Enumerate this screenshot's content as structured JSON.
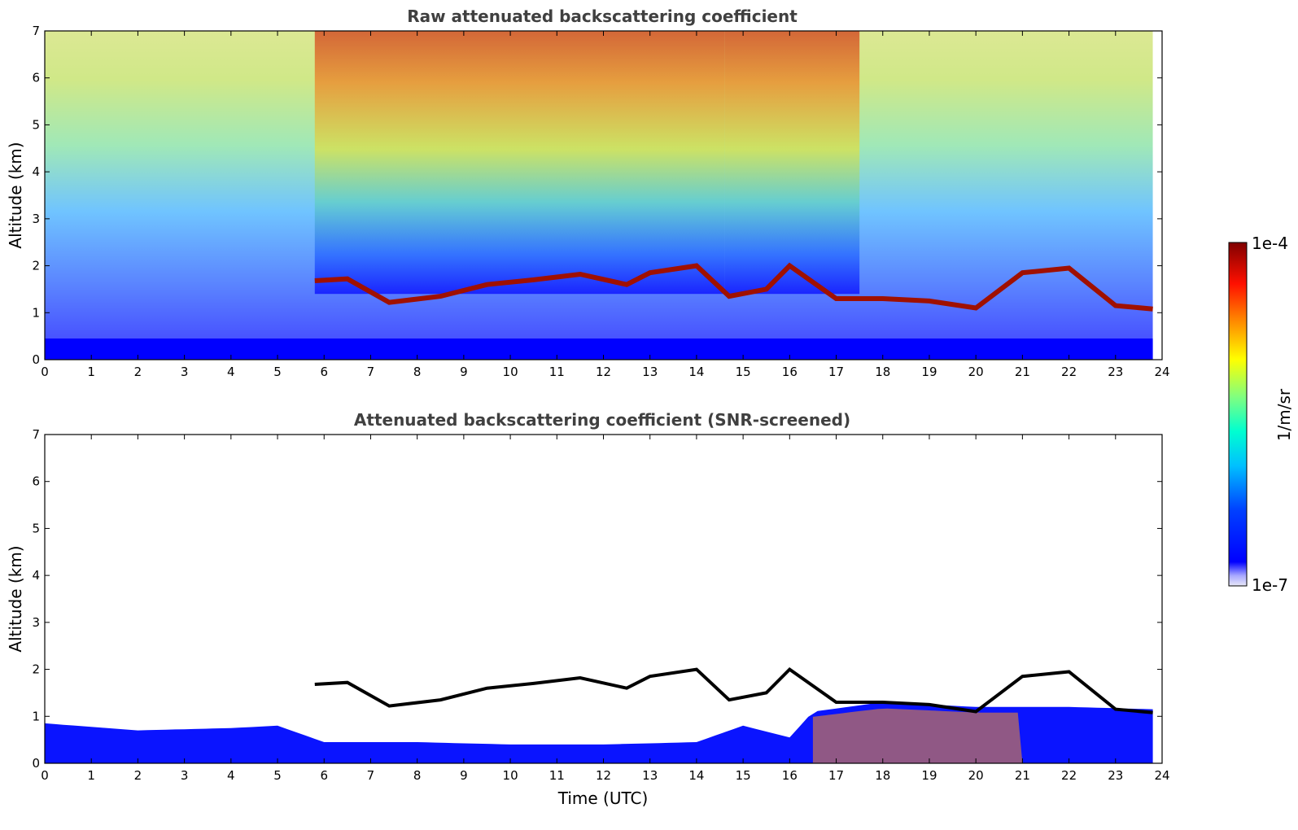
{
  "chart_data": [
    {
      "type": "heatmap",
      "title": "Raw attenuated backscattering coefficient",
      "xlabel": "",
      "ylabel": "Altitude (km)",
      "xlim": [
        0,
        24
      ],
      "ylim": [
        0,
        7
      ],
      "x_ticks": [
        "0",
        "1",
        "2",
        "3",
        "4",
        "5",
        "6",
        "7",
        "8",
        "9",
        "10",
        "11",
        "12",
        "13",
        "14",
        "15",
        "16",
        "17",
        "18",
        "19",
        "20",
        "21",
        "22",
        "23",
        "24"
      ],
      "y_ticks": [
        "0",
        "1",
        "2",
        "3",
        "4",
        "5",
        "6",
        "7"
      ],
      "data_end_time": 23.8,
      "surface_layer_top_km": 0.45,
      "cloud_layer": [
        {
          "t": 5.8,
          "h": 1.68
        },
        {
          "t": 6.5,
          "h": 1.72
        },
        {
          "t": 7.4,
          "h": 1.22
        },
        {
          "t": 8.5,
          "h": 1.35
        },
        {
          "t": 9.5,
          "h": 1.6
        },
        {
          "t": 10.5,
          "h": 1.7
        },
        {
          "t": 11.5,
          "h": 1.82
        },
        {
          "t": 12.5,
          "h": 1.6
        },
        {
          "t": 13.0,
          "h": 1.85
        },
        {
          "t": 14.0,
          "h": 2.0
        },
        {
          "t": 14.7,
          "h": 1.35
        },
        {
          "t": 15.5,
          "h": 1.5
        },
        {
          "t": 16.0,
          "h": 2.0
        },
        {
          "t": 17.0,
          "h": 1.3
        },
        {
          "t": 18.0,
          "h": 1.3
        },
        {
          "t": 19.0,
          "h": 1.25
        },
        {
          "t": 20.0,
          "h": 1.1
        },
        {
          "t": 21.0,
          "h": 1.85
        },
        {
          "t": 22.0,
          "h": 1.95
        },
        {
          "t": 23.0,
          "h": 1.15
        },
        {
          "t": 23.8,
          "h": 1.08
        }
      ],
      "note_high_signal_periods": [
        [
          5.8,
          14.6
        ],
        [
          14.6,
          17.5
        ]
      ]
    },
    {
      "type": "heatmap",
      "title": "Attenuated backscattering coefficient (SNR-screened)",
      "xlabel": "Time (UTC)",
      "ylabel": "Altitude (km)",
      "xlim": [
        0,
        24
      ],
      "ylim": [
        0,
        7
      ],
      "x_ticks": [
        "0",
        "1",
        "2",
        "3",
        "4",
        "5",
        "6",
        "7",
        "8",
        "9",
        "10",
        "11",
        "12",
        "13",
        "14",
        "15",
        "16",
        "17",
        "18",
        "19",
        "20",
        "21",
        "22",
        "23",
        "24"
      ],
      "y_ticks": [
        "0",
        "1",
        "2",
        "3",
        "4",
        "5",
        "6",
        "7"
      ],
      "data_end_time": 23.8,
      "boundary_layer_top": [
        {
          "t": 0,
          "h": 0.85
        },
        {
          "t": 2,
          "h": 0.7
        },
        {
          "t": 4,
          "h": 0.75
        },
        {
          "t": 5,
          "h": 0.8
        },
        {
          "t": 6,
          "h": 0.45
        },
        {
          "t": 8,
          "h": 0.45
        },
        {
          "t": 10,
          "h": 0.4
        },
        {
          "t": 12,
          "h": 0.4
        },
        {
          "t": 14,
          "h": 0.45
        },
        {
          "t": 15,
          "h": 0.8
        },
        {
          "t": 16,
          "h": 0.55
        },
        {
          "t": 16.5,
          "h": 1.1
        },
        {
          "t": 18,
          "h": 1.3
        },
        {
          "t": 20,
          "h": 1.2
        },
        {
          "t": 22,
          "h": 1.2
        },
        {
          "t": 23.8,
          "h": 1.15
        }
      ]
    }
  ],
  "colorbar": {
    "max_label": "1e-4",
    "min_label": "1e-7",
    "label": "1/m/sr"
  },
  "colors": {
    "low": "#0000ff",
    "high": "#8b0000",
    "background": "#ffffff"
  }
}
